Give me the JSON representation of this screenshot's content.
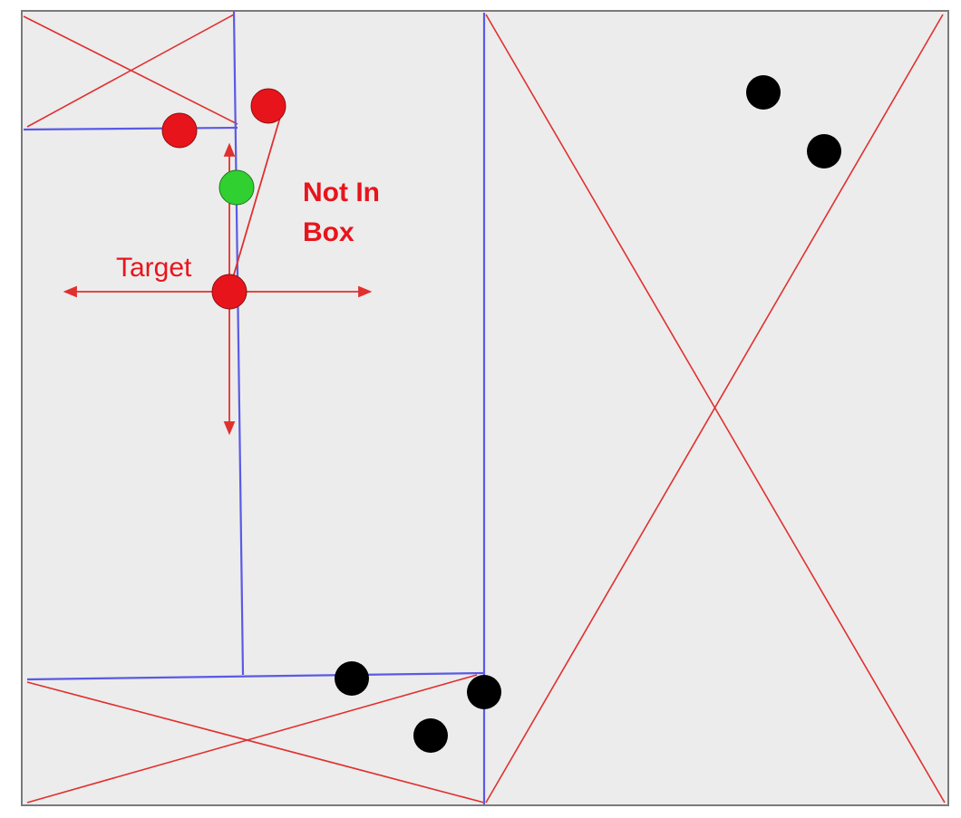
{
  "labels": {
    "target": "Target",
    "not_in_box_line1": "Not In",
    "not_in_box_line2": "Box"
  },
  "colors": {
    "background": "#ececec",
    "frame": "#7a7a7a",
    "partition_lines": "#5a5ae6",
    "diagonals": "#e0302f",
    "red_points": "#e8141c",
    "green_point": "#30d030",
    "black_points": "#000000",
    "annotation": "#e8141c"
  }
}
